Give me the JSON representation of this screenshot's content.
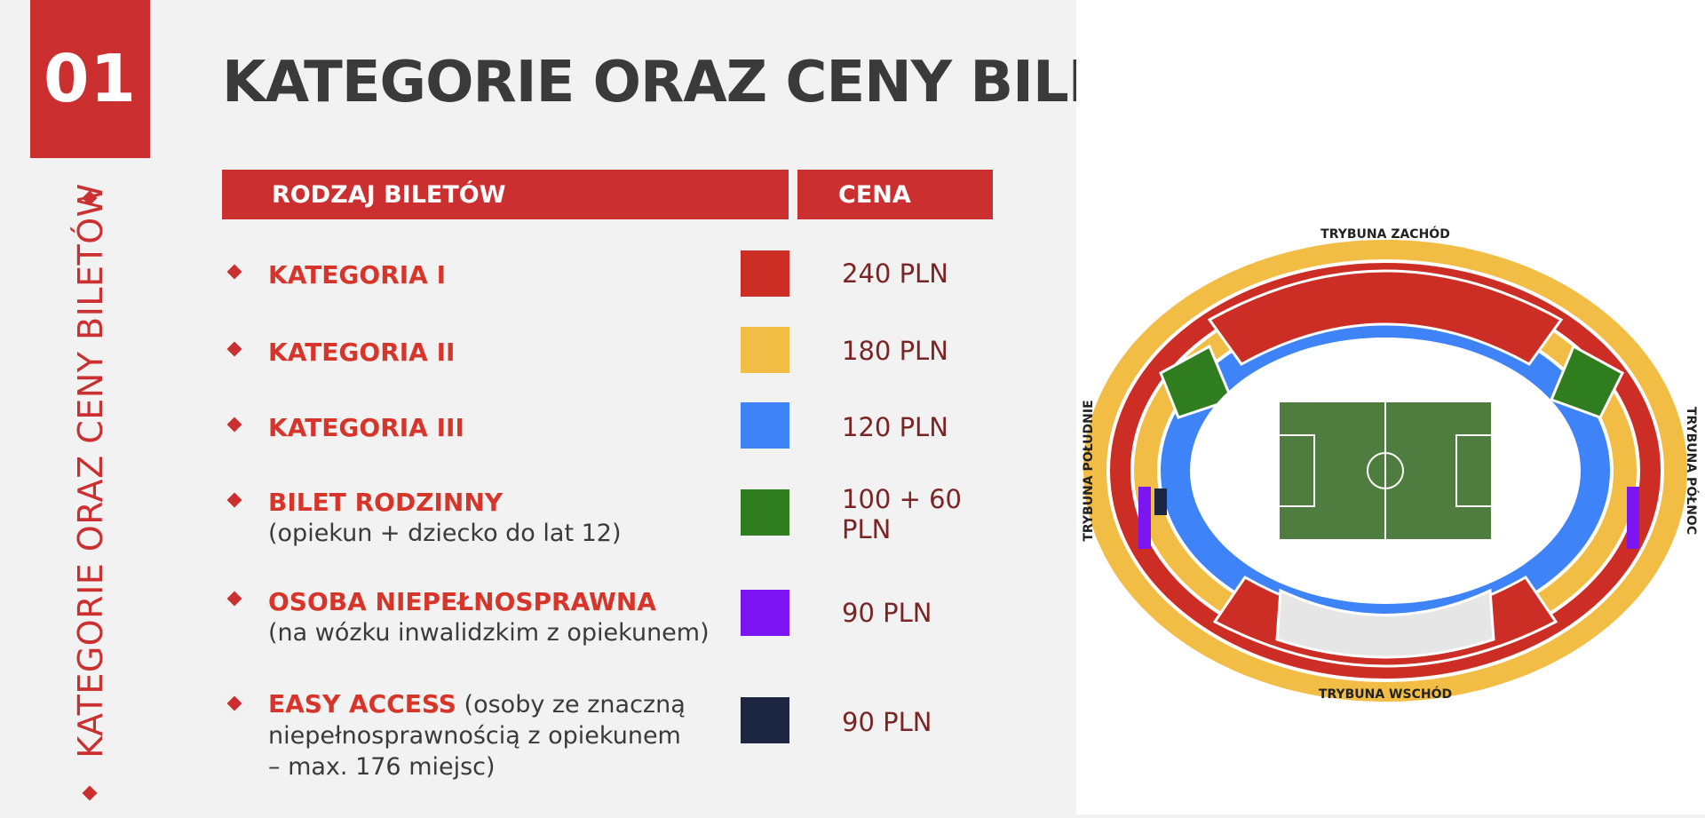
{
  "section_number": "01",
  "title": "KATEGORIE ORAZ CENY BILETÓW",
  "vertical_title": "KATEGORIE ORAZ CENY BILETÓW",
  "table_header": {
    "type": "RODZAJ BILETÓW",
    "price": "CENA"
  },
  "rows": [
    {
      "name": "KATEGORIA I",
      "desc": "",
      "price": "240 PLN",
      "color": "#cc2d24"
    },
    {
      "name": "KATEGORIA II",
      "desc": "",
      "price": "180 PLN",
      "color": "#f2bd45"
    },
    {
      "name": "KATEGORIA III",
      "desc": "",
      "price": "120 PLN",
      "color": "#3f83f8"
    },
    {
      "name": "BILET RODZINNY",
      "desc": "(opiekun + dziecko do lat 12)",
      "price_line1": "100 + 60",
      "price_line2": "PLN",
      "color": "#2f7d1f"
    },
    {
      "name": "OSOBA NIEPEŁNOSPRAWNA",
      "desc": "(na wózku inwalidzkim z opiekunem)",
      "price": "90 PLN",
      "color": "#7b16f2"
    },
    {
      "name": "EASY ACCESS",
      "desc": " (osoby ze znaczną niepełnosprawnością z opiekunem – max. 176 miejsc)",
      "price": "90 PLN",
      "color": "#1d2641"
    }
  ],
  "map": {
    "stand_west": "TRYBUNA ZACHÓD",
    "stand_east": "TRYBUNA WSCHÓD",
    "stand_south": "TRYBUNA POŁUDNIE",
    "stand_north": "TRYBUNA PÓŁNOC"
  }
}
